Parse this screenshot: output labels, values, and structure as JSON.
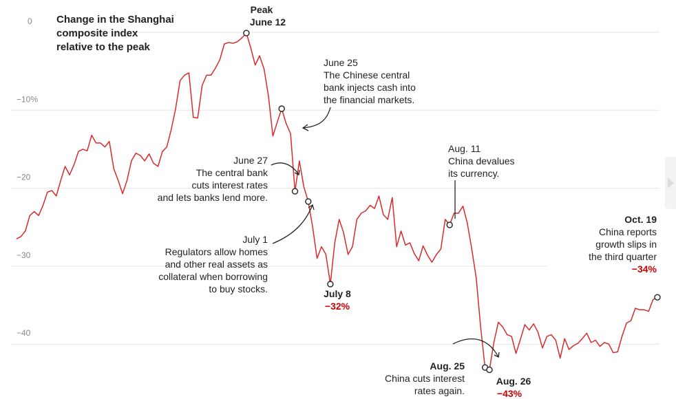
{
  "chart_data": {
    "type": "line",
    "title": "Change in the Shanghai composite index relative to the peak",
    "title_lines": [
      "Change in the Shanghai",
      "composite index",
      "relative to the peak"
    ],
    "xlabel": "",
    "ylabel": "",
    "ylim": [
      -45,
      2
    ],
    "y_ticks": [
      {
        "value": 0,
        "label": "0"
      },
      {
        "value": -10,
        "label": "−10%"
      },
      {
        "value": -20,
        "label": "−20"
      },
      {
        "value": -30,
        "label": "−30"
      },
      {
        "value": -40,
        "label": "−40"
      }
    ],
    "grid": true,
    "series_color": "#d9292a",
    "series": [
      {
        "values": [
          -26.5,
          -26.2,
          -25.5,
          -23.5,
          -23,
          -23.5,
          -22.2,
          -20.5,
          -20.3,
          -21,
          -19,
          -17.2,
          -18.3,
          -17,
          -15.3,
          -15,
          -15.2,
          -13.2,
          -14.2,
          -14.2,
          -14.7,
          -14,
          -17.5,
          -19,
          -20.7,
          -19,
          -16.5,
          -15.5,
          -15.8,
          -16.5,
          -15.6,
          -16.8,
          -17.2,
          -15.3,
          -14.7,
          -12.5,
          -9.8,
          -6.2,
          -5.5,
          -5.2,
          -10.9,
          -11,
          -6.8,
          -5.5,
          -5.5,
          -4.6,
          -3.5,
          -1.5,
          -1.3,
          -1.4,
          -1.2,
          -0.7,
          -0.1,
          -2,
          -4.2,
          -3,
          -4.7,
          -8.2,
          -13.3,
          -11.5,
          -9.8,
          -11.7,
          -13,
          -20.4,
          -16.5,
          -19.8,
          -21.7,
          -25,
          -29,
          -27.5,
          -28.5,
          -32.3,
          -27,
          -24,
          -25.7,
          -28.5,
          -27.5,
          -24,
          -23.2,
          -22.9,
          -22.2,
          -22.6,
          -21,
          -23.4,
          -24,
          -21.2,
          -27.5,
          -25.5,
          -27.3,
          -27,
          -28.4,
          -29.3,
          -27.4,
          -28.6,
          -29.5,
          -28.5,
          -27.8,
          -24,
          -24.7,
          -23.2,
          -23.2,
          -22.3,
          -24.5,
          -27.8,
          -31.5,
          -37.8,
          -43,
          -43.3,
          -39.8,
          -37.2,
          -37.8,
          -38.8,
          -39,
          -41.2,
          -39.4,
          -37.5,
          -38.2,
          -37.4,
          -38.5,
          -40.5,
          -39,
          -38.8,
          -39.5,
          -41.8,
          -39.3,
          -40.7,
          -40.2,
          -39.9,
          -39.3,
          -38.6,
          -39.8,
          -39.5,
          -40.3,
          -39.8,
          -40,
          -41.1,
          -41,
          -39,
          -37.3,
          -37,
          -35.4,
          -35.6,
          -35.6,
          -35.8,
          -34.3,
          -34
        ],
        "start_label": "",
        "end_label": "Oct. 19"
      }
    ],
    "annotations": [
      {
        "date": "Peak June 12",
        "value": 0,
        "text": "Peak\nJune 12",
        "marker_index": 52
      },
      {
        "date": "June 25",
        "value": -12.5,
        "text": "The Chinese central bank injects cash into the financial markets.",
        "marker_index": 60
      },
      {
        "date": "June 27",
        "value": -20.2,
        "text": "The central bank cuts interest rates and lets banks lend more.",
        "marker_index": 63
      },
      {
        "date": "July 1",
        "value": -21.8,
        "text": "Regulators allow homes and other real assets as collateral when borrowing to buy stocks.",
        "marker_index": 66
      },
      {
        "date": "July 8",
        "value": -32,
        "text": "−32%",
        "marker_index": 71
      },
      {
        "date": "Aug. 11",
        "value": -23.6,
        "text": "China devalues its currency.",
        "marker_index": 98
      },
      {
        "date": "Aug. 25",
        "value": -42.8,
        "text": "China cuts interest rates again.",
        "marker_index": 106
      },
      {
        "date": "Aug. 26",
        "value": -43,
        "text": "−43%",
        "marker_index": 107
      },
      {
        "date": "Oct. 19",
        "value": -34,
        "text": "China reports growth slips in the third quarter −34%",
        "marker_index": 145
      }
    ]
  },
  "labels": {
    "peak_1": "Peak",
    "peak_2": "June 12",
    "june25_date": "June 25",
    "june25_l1": "The Chinese central",
    "june25_l2": "bank injects cash into",
    "june25_l3": "the financial markets.",
    "june27_date": "June 27",
    "june27_l1": "The central bank",
    "june27_l2": "cuts interest rates",
    "june27_l3": "and lets banks lend more.",
    "july1_date": "July 1",
    "july1_l1": "Regulators allow homes",
    "july1_l2": "and other real assets as",
    "july1_l3": "collateral when borrowing",
    "july1_l4": "to buy stocks.",
    "july8_date": "July 8",
    "july8_pct": "−32%",
    "aug11_date": "Aug. 11",
    "aug11_l1": "China devalues",
    "aug11_l2": "its currency.",
    "aug25_date": "Aug. 25",
    "aug25_l1": "China cuts interest",
    "aug25_l2": "rates again.",
    "aug26_date": "Aug. 26",
    "aug26_pct": "−43%",
    "oct19_date": "Oct. 19",
    "oct19_l1": "China reports",
    "oct19_l2": "growth slips in",
    "oct19_l3": "the third quarter",
    "oct19_pct": "−34%"
  },
  "scroll_tab": {
    "icon": "chevron-right-icon"
  }
}
